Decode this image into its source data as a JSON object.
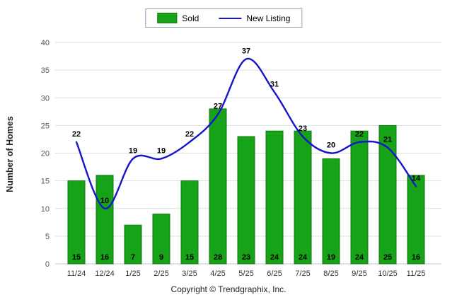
{
  "chart_data": {
    "type": "bar+line",
    "categories": [
      "11/24",
      "12/24",
      "1/25",
      "2/25",
      "3/25",
      "4/25",
      "5/25",
      "6/25",
      "7/25",
      "8/25",
      "9/25",
      "10/25",
      "11/25"
    ],
    "series": [
      {
        "name": "Sold",
        "type": "bar",
        "color": "#17a317",
        "edge_color": "#0f7d0f",
        "values": [
          15,
          16,
          7,
          9,
          15,
          28,
          23,
          24,
          24,
          19,
          24,
          25,
          16
        ]
      },
      {
        "name": "New Listing",
        "type": "line",
        "color": "#1414cc",
        "values": [
          22,
          10,
          19,
          19,
          22,
          27,
          37,
          31,
          23,
          20,
          22,
          21,
          14
        ]
      }
    ],
    "title": "",
    "xlabel": "",
    "ylabel": "Number of Homes",
    "ylim": [
      0,
      40
    ],
    "ytick_step": 5,
    "yticks": [
      0,
      5,
      10,
      15,
      20,
      25,
      30,
      35,
      40
    ],
    "grid": true,
    "grid_color": "#dedede",
    "legend_position": "top-center",
    "value_labels": true
  },
  "legend": {
    "sold_label": "Sold",
    "new_listing_label": "New Listing"
  },
  "footer": {
    "copyright": "Copyright © Trendgraphix, Inc."
  }
}
